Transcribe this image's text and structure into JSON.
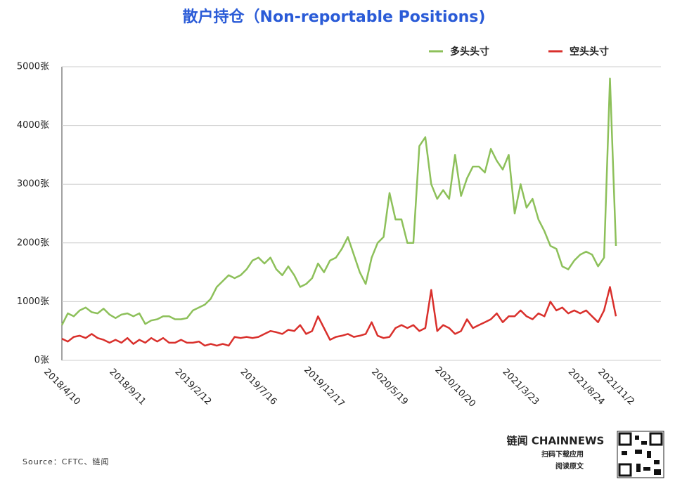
{
  "chart_data": {
    "type": "line",
    "title": "散户持仓（Non-reportable Positions)",
    "categories": [
      "2018/4/10",
      null,
      null,
      null,
      null,
      null,
      null,
      null,
      null,
      null,
      null,
      "2018/9/11",
      null,
      null,
      null,
      null,
      null,
      null,
      null,
      null,
      null,
      null,
      "2019/2/12",
      null,
      null,
      null,
      null,
      null,
      null,
      null,
      null,
      null,
      null,
      "2019/7/16",
      null,
      null,
      null,
      null,
      null,
      null,
      null,
      null,
      null,
      null,
      "2019/12/17",
      null,
      null,
      null,
      null,
      null,
      null,
      null,
      null,
      null,
      null,
      "2020/5/19",
      null,
      null,
      null,
      null,
      null,
      null,
      null,
      null,
      null,
      null,
      "2020/10/20",
      null,
      null,
      null,
      null,
      null,
      null,
      null,
      null,
      null,
      null,
      "2021/3/23",
      null,
      null,
      null,
      null,
      null,
      null,
      null,
      null,
      null,
      null,
      "2021/8/24",
      null,
      null,
      null,
      null,
      "2021/11/2"
    ],
    "series": [
      {
        "name": "多头头寸",
        "color": "#8dc05a",
        "values": [
          600,
          800,
          750,
          850,
          900,
          820,
          800,
          880,
          780,
          720,
          780,
          800,
          750,
          800,
          620,
          680,
          700,
          750,
          750,
          700,
          700,
          720,
          850,
          900,
          950,
          1050,
          1250,
          1350,
          1450,
          1400,
          1450,
          1550,
          1700,
          1750,
          1650,
          1750,
          1550,
          1450,
          1600,
          1450,
          1250,
          1300,
          1400,
          1650,
          1500,
          1700,
          1750,
          1900,
          2100,
          1800,
          1500,
          1300,
          1750,
          2000,
          2100,
          2850,
          2400,
          2400,
          2000,
          2000,
          3650,
          3800,
          3000,
          2750,
          2900,
          2750,
          3500,
          2800,
          3100,
          3300,
          3300,
          3200,
          3600,
          3400,
          3250,
          3500,
          2500,
          3000,
          2600,
          2750,
          2400,
          2200,
          1950,
          1900,
          1600,
          1550,
          1700,
          1800,
          1850,
          1800,
          1600,
          1750,
          4800,
          1950
        ]
      },
      {
        "name": "空头头寸",
        "color": "#d9302c",
        "values": [
          370,
          320,
          400,
          420,
          380,
          450,
          380,
          350,
          300,
          350,
          300,
          380,
          280,
          350,
          300,
          380,
          320,
          380,
          300,
          300,
          350,
          300,
          300,
          320,
          250,
          280,
          250,
          280,
          250,
          400,
          380,
          400,
          380,
          400,
          450,
          500,
          480,
          450,
          520,
          500,
          600,
          450,
          500,
          750,
          550,
          350,
          400,
          420,
          450,
          400,
          420,
          450,
          650,
          420,
          380,
          400,
          550,
          600,
          550,
          600,
          500,
          550,
          1200,
          500,
          600,
          550,
          450,
          500,
          700,
          550,
          600,
          650,
          700,
          800,
          650,
          750,
          750,
          850,
          750,
          700,
          800,
          750,
          1000,
          850,
          900,
          800,
          850,
          800,
          850,
          750,
          650,
          850,
          1250,
          750
        ]
      }
    ],
    "ylim": [
      0,
      5000
    ],
    "yticks": [
      {
        "value": 0,
        "label": "0张"
      },
      {
        "value": 1000,
        "label": "1000张"
      },
      {
        "value": 2000,
        "label": "2000张"
      },
      {
        "value": 3000,
        "label": "3000张"
      },
      {
        "value": 4000,
        "label": "4000张"
      },
      {
        "value": 5000,
        "label": "5000张"
      }
    ],
    "grid": true,
    "legend": "top-right"
  },
  "footer": {
    "source": "Source：CFTC、链闻",
    "brand": "链闻 CHAINNEWS",
    "scan": "扫码下载应用",
    "read": "阅读原文"
  }
}
